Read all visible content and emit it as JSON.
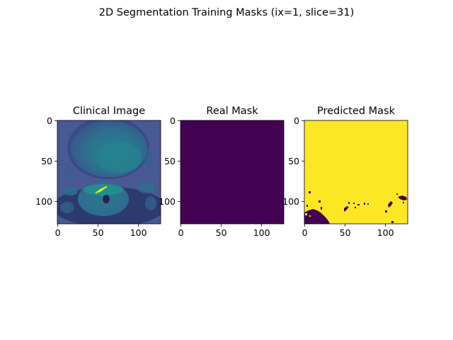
{
  "figure": {
    "suptitle": "2D Segmentation Training Masks (ix=1, slice=31)",
    "background": "#ffffff"
  },
  "panels": [
    {
      "name": "clinical-image",
      "title": "Clinical Image",
      "xticks": [
        "0",
        "50",
        "100"
      ],
      "yticks": [
        "0",
        "50",
        "100"
      ],
      "xtick_values": [
        0,
        50,
        100
      ],
      "ytick_values": [
        0,
        50,
        100
      ],
      "extent": [
        0,
        128
      ],
      "content": "mri-slice"
    },
    {
      "name": "real-mask",
      "title": "Real Mask",
      "xticks": [
        "0",
        "50",
        "100"
      ],
      "yticks": [
        "0",
        "50",
        "100"
      ],
      "xtick_values": [
        0,
        50,
        100
      ],
      "ytick_values": [
        0,
        50,
        100
      ],
      "extent": [
        0,
        128
      ],
      "content": "uniform",
      "fill_color": "#440154"
    },
    {
      "name": "predicted-mask",
      "title": "Predicted Mask",
      "xticks": [
        "0",
        "50",
        "100"
      ],
      "yticks": [
        "0",
        "50",
        "100"
      ],
      "xtick_values": [
        0,
        50,
        100
      ],
      "ytick_values": [
        0,
        50,
        100
      ],
      "extent": [
        0,
        128
      ],
      "content": "binary-mask",
      "fill_color": "#fde725",
      "background_class_color": "#440154"
    }
  ],
  "colors": {
    "viridis_dark": "#440154",
    "viridis_mid": "#21918c",
    "viridis_yellow": "#fde725"
  }
}
